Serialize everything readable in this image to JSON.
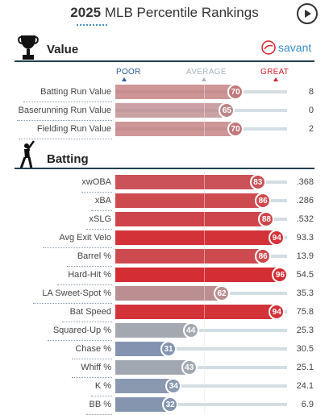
{
  "header": {
    "year": "2025",
    "title": "MLB Percentile Rankings"
  },
  "sections": {
    "value": {
      "title": "Value"
    },
    "batting": {
      "title": "Batting"
    }
  },
  "savant_label": "savant",
  "scale": {
    "poor": "POOR",
    "average": "AVERAGE",
    "great": "GREAT"
  },
  "value_rows": [
    {
      "label": "Batting Run Value",
      "percentile": 70,
      "value": "8"
    },
    {
      "label": "Baserunning Run Value",
      "percentile": 65,
      "value": "0"
    },
    {
      "label": "Fielding Run Value",
      "percentile": 70,
      "value": "2"
    }
  ],
  "batting_rows": [
    {
      "label": "xwOBA",
      "percentile": 83,
      "value": ".368"
    },
    {
      "label": "xBA",
      "percentile": 86,
      "value": ".286"
    },
    {
      "label": "xSLG",
      "percentile": 88,
      "value": ".532"
    },
    {
      "label": "Avg Exit Velo",
      "percentile": 94,
      "value": "93.3"
    },
    {
      "label": "Barrel %",
      "percentile": 86,
      "value": "13.9"
    },
    {
      "label": "Hard-Hit %",
      "percentile": 96,
      "value": "54.5"
    },
    {
      "label": "LA Sweet-Spot %",
      "percentile": 62,
      "value": "35.3"
    },
    {
      "label": "Bat Speed",
      "percentile": 94,
      "value": "75.8"
    },
    {
      "label": "Squared-Up %",
      "percentile": 44,
      "value": "25.3"
    },
    {
      "label": "Chase %",
      "percentile": 31,
      "value": "30.5"
    },
    {
      "label": "Whiff %",
      "percentile": 43,
      "value": "25.1"
    },
    {
      "label": "K %",
      "percentile": 34,
      "value": "24.1"
    },
    {
      "label": "BB %",
      "percentile": 32,
      "value": "6.9"
    }
  ],
  "colors": {
    "poor": "#3661ad",
    "average": "#b2b2b2",
    "great": "#d82129",
    "scale_poor_text": "#2b5a9c",
    "scale_avg_text": "#a5b4bd",
    "scale_great_text": "#d82129"
  },
  "icons": {
    "play": "play-icon",
    "trophy": "trophy-icon",
    "batter": "batter-icon",
    "savant": "savant-logo-icon"
  }
}
